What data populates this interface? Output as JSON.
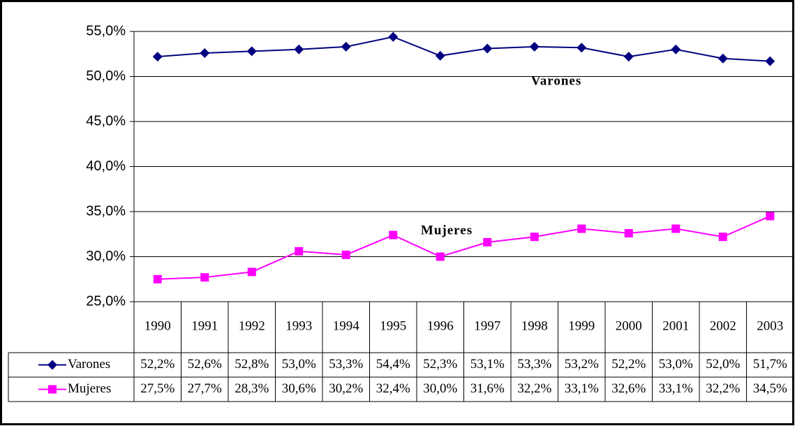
{
  "chart_data": {
    "type": "line",
    "categories": [
      "1990",
      "1991",
      "1992",
      "1993",
      "1994",
      "1995",
      "1996",
      "1997",
      "1998",
      "1999",
      "2000",
      "2001",
      "2002",
      "2003"
    ],
    "series": [
      {
        "name": "Varones",
        "color": "#000080",
        "marker": "diamond",
        "values": [
          52.2,
          52.6,
          52.8,
          53.0,
          53.3,
          54.4,
          52.3,
          53.1,
          53.3,
          53.2,
          52.2,
          53.0,
          52.0,
          51.7
        ],
        "value_labels": [
          "52,2%",
          "52,6%",
          "52,8%",
          "53,0%",
          "53,3%",
          "54,4%",
          "52,3%",
          "53,1%",
          "53,3%",
          "53,2%",
          "52,2%",
          "53,0%",
          "52,0%",
          "51,7%"
        ]
      },
      {
        "name": "Mujeres",
        "color": "#ff00ff",
        "marker": "square",
        "values": [
          27.5,
          27.7,
          28.3,
          30.6,
          30.2,
          32.4,
          30.0,
          31.6,
          32.2,
          33.1,
          32.6,
          33.1,
          32.2,
          34.5
        ],
        "value_labels": [
          "27,5%",
          "27,7%",
          "28,3%",
          "30,6%",
          "30,2%",
          "32,4%",
          "30,0%",
          "31,6%",
          "32,2%",
          "33,1%",
          "32,6%",
          "33,1%",
          "32,2%",
          "34,5%"
        ]
      }
    ],
    "ylim": [
      25,
      55
    ],
    "yticks": [
      {
        "value": 25,
        "label": "25,0%"
      },
      {
        "value": 30,
        "label": "30,0%"
      },
      {
        "value": 35,
        "label": "35,0%"
      },
      {
        "value": 40,
        "label": "40,0%"
      },
      {
        "value": 45,
        "label": "45,0%"
      },
      {
        "value": 50,
        "label": "50,0%"
      },
      {
        "value": 55,
        "label": "55,0%"
      }
    ],
    "grid": true,
    "annotations": [
      "Varones",
      "Mujeres"
    ]
  }
}
